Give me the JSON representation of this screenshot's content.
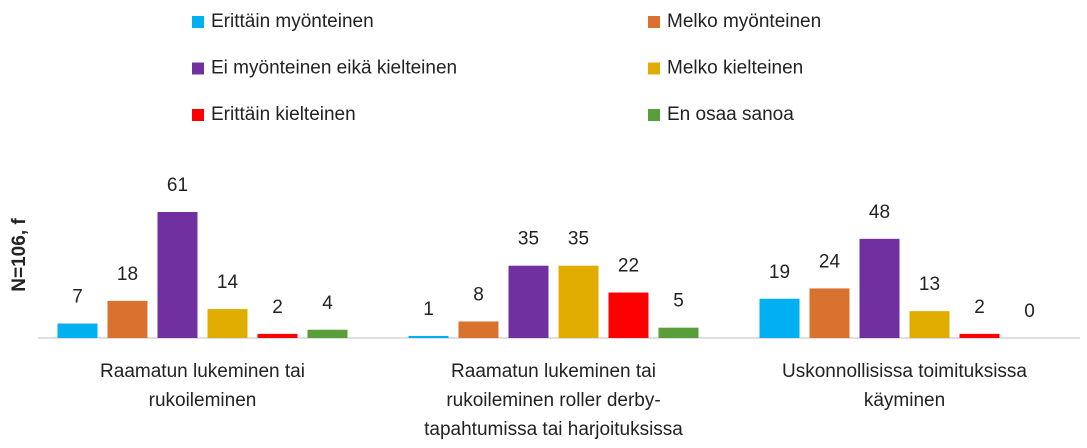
{
  "chart_data": {
    "type": "bar",
    "y_label": "N=106, f",
    "categories": [
      "Raamatun lukeminen tai rukoileminen",
      "Raamatun lukeminen tai rukoileminen roller derby-tapahtumissa tai harjoituksissa",
      "Uskonnollisissa toimituksissa käyminen"
    ],
    "series": [
      {
        "name": "Erittäin myönteinen",
        "color": "#00b0f0",
        "values": [
          7,
          1,
          19
        ]
      },
      {
        "name": "Melko myönteinen",
        "color": "#d9722f",
        "values": [
          18,
          8,
          24
        ]
      },
      {
        "name": "Ei myönteinen eikä kielteinen",
        "color": "#7030a0",
        "values": [
          61,
          35,
          48
        ]
      },
      {
        "name": "Melko kielteinen",
        "color": "#e0ac00",
        "values": [
          14,
          35,
          13
        ]
      },
      {
        "name": "Erittäin kielteinen",
        "color": "#ff0000",
        "values": [
          2,
          22,
          2
        ]
      },
      {
        "name": "En osaa sanoa",
        "color": "#5a9e3c",
        "values": [
          4,
          5,
          0
        ]
      }
    ],
    "ylim": [
      0,
      70
    ],
    "legend": "top"
  }
}
